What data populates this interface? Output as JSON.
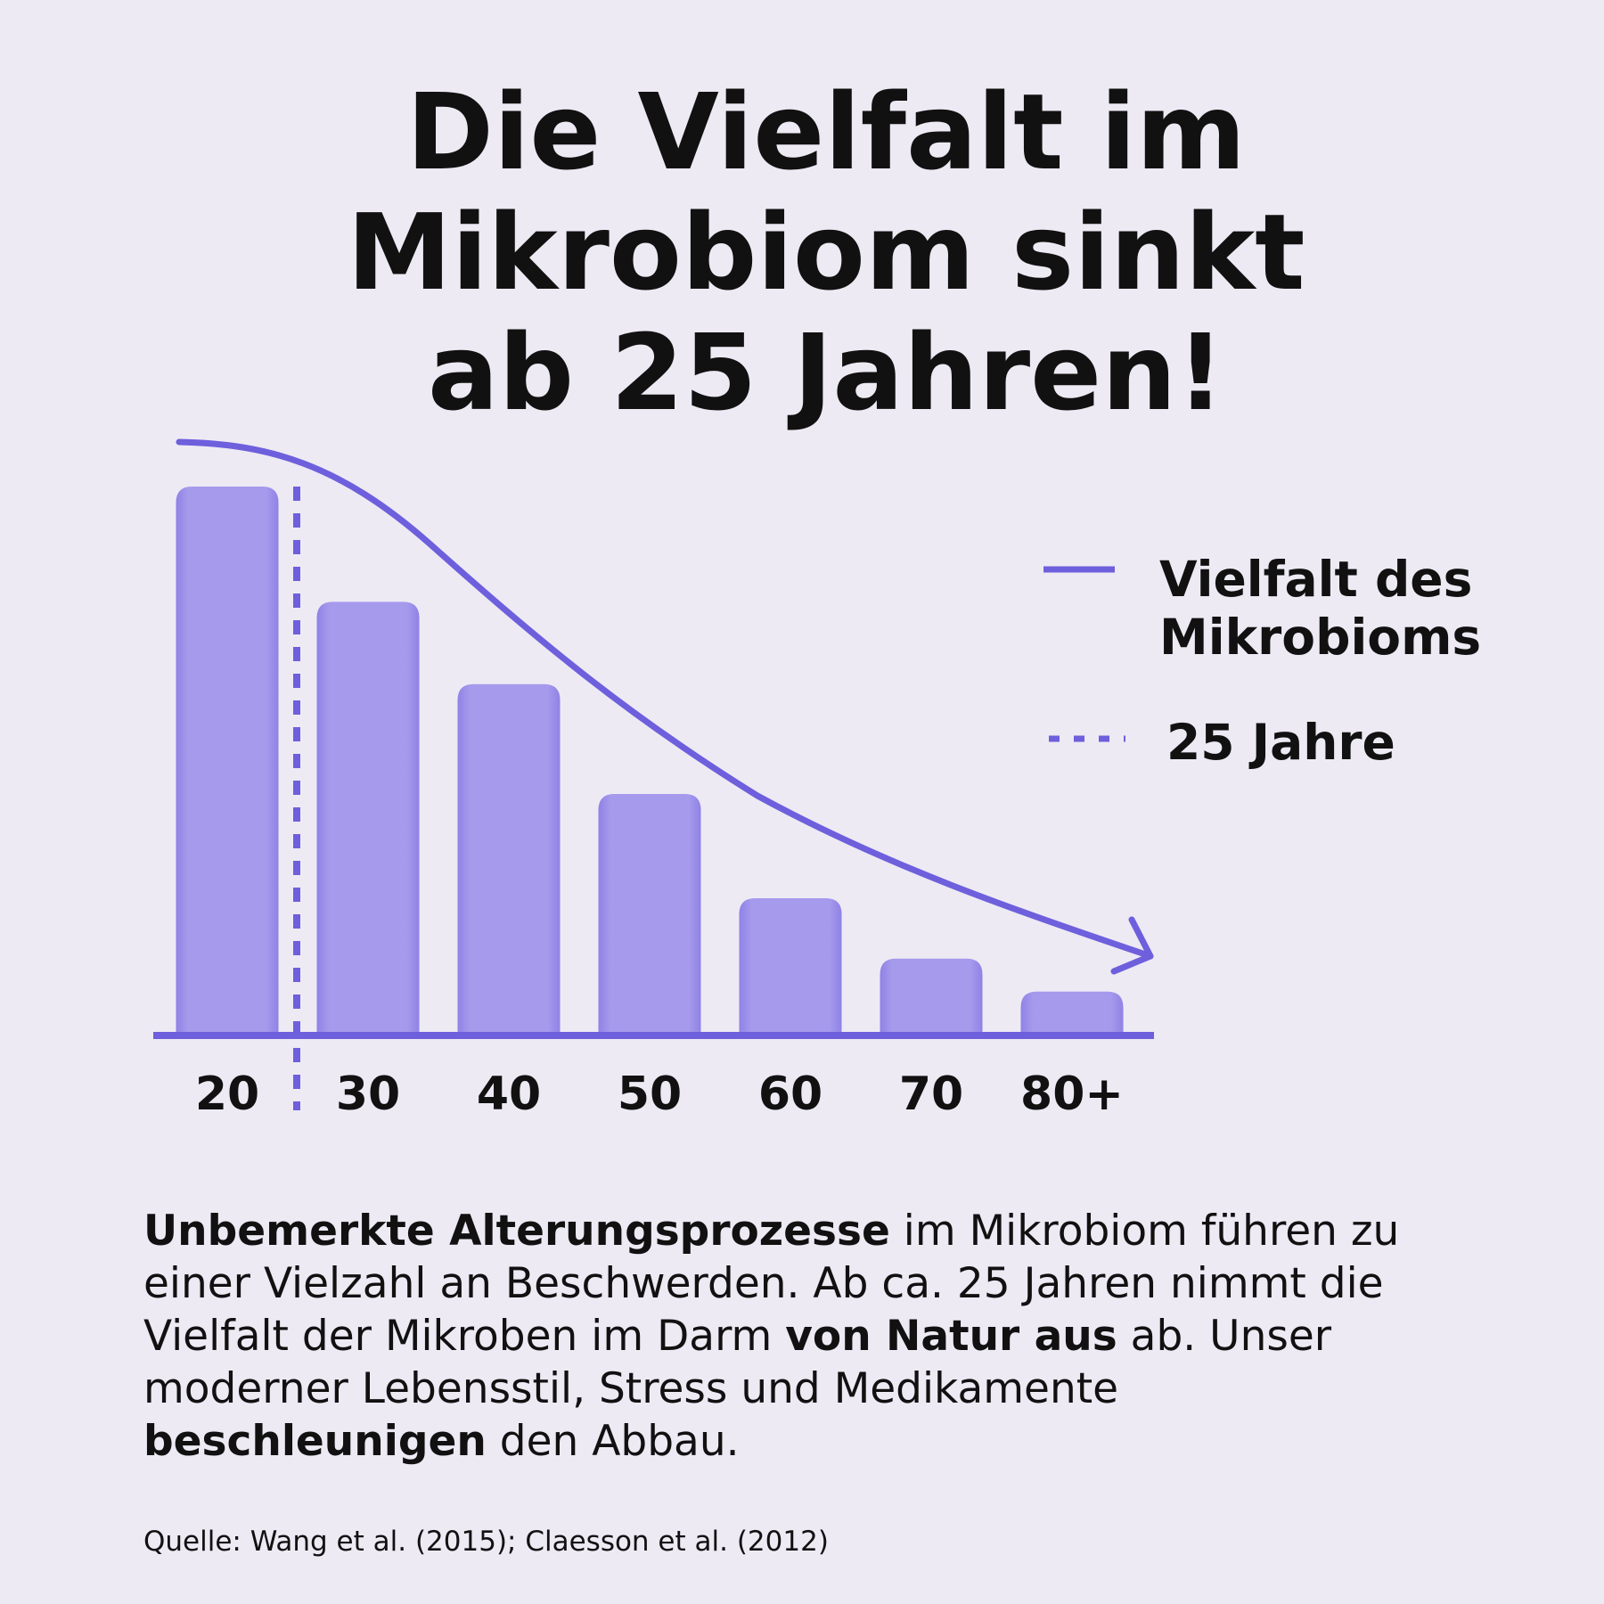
{
  "chart_data": {
    "type": "bar",
    "title": [
      "Die Vielfalt im",
      "Mikrobiom sinkt",
      "ab 25 Jahren!"
    ],
    "categories": [
      "20",
      "30",
      "40",
      "50",
      "60",
      "70",
      "80+"
    ],
    "values": [
      100,
      79,
      64,
      44,
      25,
      14,
      8
    ],
    "color": "#a59aec",
    "line_color": "#6e5fdc",
    "ylim": [
      0,
      100
    ],
    "legend": [
      [
        "Vielfalt des",
        "Mikrobioms"
      ],
      [
        "25 Jahre"
      ]
    ]
  },
  "paragraph": [
    {
      "text": "Unbemerkte Alterungsprozesse",
      "bold": true
    },
    {
      "text": " im Mikrobiom führen zu einer Vielzahl an Beschwerden. Ab ca. 25 Jahren nimmt die Vielfalt der Mikroben im Darm ",
      "bold": false
    },
    {
      "text": "von Natur aus",
      "bold": true
    },
    {
      "text": " ab. Unser moderner Lebensstil, Stress und Medikamente ",
      "bold": false
    },
    {
      "text": "beschleunigen",
      "bold": true
    },
    {
      "text": " den Abbau.",
      "bold": false
    }
  ],
  "source": "Quelle: Wang et al. (2015); Claesson et al. (2012)"
}
